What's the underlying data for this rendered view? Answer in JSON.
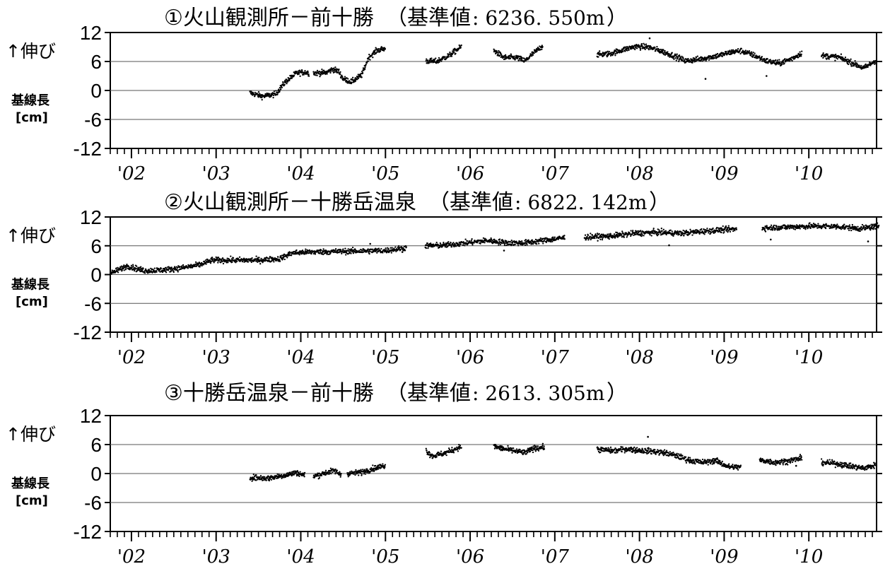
{
  "chart_data": [
    {
      "type": "scatter",
      "title": "①火山観測所－前十勝",
      "reference_prefix": "（基準値",
      "reference_value": ": 6236. 550m",
      "reference_suffix": "）",
      "ylabel_arrow": "↑伸び",
      "ylabel_main": "基線長",
      "ylabel_unit": "[cm]",
      "yticks": [
        "12",
        "6",
        "0",
        "-6",
        "-12"
      ],
      "ylim": [
        -12,
        12
      ],
      "xlim": [
        2001.75,
        2010.83
      ],
      "xtick_labels": [
        "'02",
        "'03",
        "'04",
        "'05",
        "'06",
        "'07",
        "'08",
        "'09",
        "'10"
      ],
      "grid": true,
      "trend": [
        [
          2003.4,
          -0.5
        ],
        [
          2003.55,
          -1.2
        ],
        [
          2003.7,
          -0.8
        ],
        [
          2003.82,
          1.8
        ],
        [
          2003.95,
          3.6
        ],
        [
          2004.05,
          3.8
        ],
        [
          2004.1,
          3.6
        ],
        [
          2004.12,
          null
        ],
        [
          2004.15,
          3.6
        ],
        [
          2004.3,
          3.7
        ],
        [
          2004.38,
          4.4
        ],
        [
          2004.45,
          3.9
        ],
        [
          2004.5,
          2.4
        ],
        [
          2004.6,
          1.8
        ],
        [
          2004.72,
          3.2
        ],
        [
          2004.8,
          6.8
        ],
        [
          2004.9,
          8.3
        ],
        [
          2005.0,
          8.7
        ],
        [
          2005.2,
          null
        ],
        [
          2005.48,
          6.1
        ],
        [
          2005.6,
          6.0
        ],
        [
          2005.75,
          7.2
        ],
        [
          2005.9,
          9.1
        ],
        [
          2006.1,
          null
        ],
        [
          2006.28,
          8.3
        ],
        [
          2006.4,
          6.8
        ],
        [
          2006.55,
          6.8
        ],
        [
          2006.65,
          6.1
        ],
        [
          2006.72,
          7.3
        ],
        [
          2006.86,
          9.3
        ],
        [
          2007.2,
          null
        ],
        [
          2007.5,
          7.4
        ],
        [
          2007.65,
          7.6
        ],
        [
          2007.8,
          8.4
        ],
        [
          2007.95,
          9.1
        ],
        [
          2008.1,
          9.0
        ],
        [
          2008.25,
          8.2
        ],
        [
          2008.4,
          7.2
        ],
        [
          2008.55,
          6.1
        ],
        [
          2008.75,
          6.6
        ],
        [
          2008.95,
          7.3
        ],
        [
          2009.1,
          8.0
        ],
        [
          2009.2,
          8.2
        ],
        [
          2009.35,
          7.3
        ],
        [
          2009.5,
          6.1
        ],
        [
          2009.65,
          5.6
        ],
        [
          2009.8,
          6.6
        ],
        [
          2009.92,
          7.8
        ],
        [
          2010.05,
          null
        ],
        [
          2010.15,
          7.2
        ],
        [
          2010.35,
          6.9
        ],
        [
          2010.5,
          5.8
        ],
        [
          2010.65,
          4.6
        ],
        [
          2010.8,
          6.3
        ]
      ],
      "outliers": [
        [
          2008.78,
          2.4
        ],
        [
          2008.12,
          10.8
        ],
        [
          2009.5,
          3.0
        ]
      ]
    },
    {
      "type": "scatter",
      "title": "②火山観測所－十勝岳温泉",
      "reference_prefix": "（基準値",
      "reference_value": ": 6822. 142m",
      "reference_suffix": "）",
      "ylabel_arrow": "↑伸び",
      "ylabel_main": "基線長",
      "ylabel_unit": "[cm]",
      "yticks": [
        "12",
        "6",
        "0",
        "-6",
        "-12"
      ],
      "ylim": [
        -12,
        12
      ],
      "xlim": [
        2001.75,
        2010.83
      ],
      "xtick_labels": [
        "'02",
        "'03",
        "'04",
        "'05",
        "'06",
        "'07",
        "'08",
        "'09",
        "'10"
      ],
      "grid": true,
      "trend": [
        [
          2001.75,
          0.2
        ],
        [
          2001.95,
          1.8
        ],
        [
          2002.15,
          0.8
        ],
        [
          2002.4,
          1.0
        ],
        [
          2002.6,
          1.4
        ],
        [
          2002.8,
          2.0
        ],
        [
          2002.95,
          3.0
        ],
        [
          2003.2,
          3.0
        ],
        [
          2003.5,
          3.0
        ],
        [
          2003.75,
          3.3
        ],
        [
          2003.9,
          4.5
        ],
        [
          2004.1,
          4.7
        ],
        [
          2004.4,
          4.8
        ],
        [
          2004.7,
          4.9
        ],
        [
          2005.0,
          5.0
        ],
        [
          2005.25,
          5.6
        ],
        [
          2005.38,
          null
        ],
        [
          2005.47,
          6.0
        ],
        [
          2005.7,
          6.1
        ],
        [
          2005.95,
          6.6
        ],
        [
          2006.2,
          7.1
        ],
        [
          2006.45,
          6.6
        ],
        [
          2006.65,
          6.6
        ],
        [
          2006.95,
          7.3
        ],
        [
          2007.12,
          7.7
        ],
        [
          2007.25,
          null
        ],
        [
          2007.35,
          7.8
        ],
        [
          2007.65,
          8.0
        ],
        [
          2007.95,
          8.6
        ],
        [
          2008.2,
          8.8
        ],
        [
          2008.5,
          8.6
        ],
        [
          2008.8,
          9.1
        ],
        [
          2009.15,
          9.5
        ],
        [
          2009.3,
          null
        ],
        [
          2009.45,
          9.7
        ],
        [
          2009.75,
          9.9
        ],
        [
          2010.05,
          10.1
        ],
        [
          2010.35,
          10.0
        ],
        [
          2010.6,
          9.6
        ],
        [
          2010.83,
          10.1
        ]
      ],
      "outliers": [
        [
          2004.82,
          6.4
        ],
        [
          2005.2,
          4.7
        ],
        [
          2006.4,
          5.0
        ],
        [
          2008.35,
          6.1
        ],
        [
          2009.55,
          7.3
        ],
        [
          2010.7,
          6.9
        ]
      ]
    },
    {
      "type": "scatter",
      "title": "③十勝岳温泉－前十勝",
      "reference_prefix": "（基準値",
      "reference_value": ": 2613. 305m",
      "reference_suffix": "）",
      "ylabel_arrow": "↑伸び",
      "ylabel_main": "基線長",
      "ylabel_unit": "[cm]",
      "yticks": [
        "12",
        "6",
        "0",
        "-6",
        "-12"
      ],
      "ylim": [
        -12,
        12
      ],
      "xlim": [
        2001.75,
        2010.83
      ],
      "xtick_labels": [
        "'02",
        "'03",
        "'04",
        "'05",
        "'06",
        "'07",
        "'08",
        "'09",
        "'10"
      ],
      "grid": true,
      "trend": [
        [
          2003.4,
          -0.8
        ],
        [
          2003.6,
          -1.0
        ],
        [
          2003.8,
          -0.4
        ],
        [
          2003.95,
          0.2
        ],
        [
          2004.05,
          -0.4
        ],
        [
          2004.1,
          null
        ],
        [
          2004.15,
          -0.6
        ],
        [
          2004.3,
          0.2
        ],
        [
          2004.4,
          0.6
        ],
        [
          2004.48,
          -0.3
        ],
        [
          2004.5,
          null
        ],
        [
          2004.55,
          0.0
        ],
        [
          2004.7,
          0.2
        ],
        [
          2004.85,
          1.0
        ],
        [
          2005.0,
          1.7
        ],
        [
          2005.2,
          null
        ],
        [
          2005.48,
          4.8
        ],
        [
          2005.55,
          3.6
        ],
        [
          2005.7,
          4.2
        ],
        [
          2005.9,
          5.6
        ],
        [
          2006.1,
          null
        ],
        [
          2006.28,
          5.6
        ],
        [
          2006.4,
          5.1
        ],
        [
          2006.55,
          4.6
        ],
        [
          2006.65,
          4.3
        ],
        [
          2006.75,
          5.2
        ],
        [
          2006.88,
          5.5
        ],
        [
          2007.2,
          null
        ],
        [
          2007.5,
          5.0
        ],
        [
          2007.7,
          4.7
        ],
        [
          2007.85,
          5.1
        ],
        [
          2008.0,
          4.8
        ],
        [
          2008.15,
          4.6
        ],
        [
          2008.3,
          4.3
        ],
        [
          2008.45,
          3.6
        ],
        [
          2008.6,
          2.7
        ],
        [
          2008.75,
          2.3
        ],
        [
          2008.9,
          2.7
        ],
        [
          2009.05,
          1.4
        ],
        [
          2009.2,
          1.3
        ],
        [
          2009.32,
          null
        ],
        [
          2009.42,
          2.8
        ],
        [
          2009.6,
          2.3
        ],
        [
          2009.75,
          2.6
        ],
        [
          2009.92,
          3.2
        ],
        [
          2010.1,
          null
        ],
        [
          2010.15,
          2.3
        ],
        [
          2010.35,
          2.0
        ],
        [
          2010.5,
          1.5
        ],
        [
          2010.65,
          1.1
        ],
        [
          2010.8,
          1.8
        ]
      ],
      "outliers": [
        [
          2008.1,
          7.6
        ],
        [
          2007.95,
          4.3
        ],
        [
          2009.85,
          1.6
        ]
      ]
    }
  ]
}
